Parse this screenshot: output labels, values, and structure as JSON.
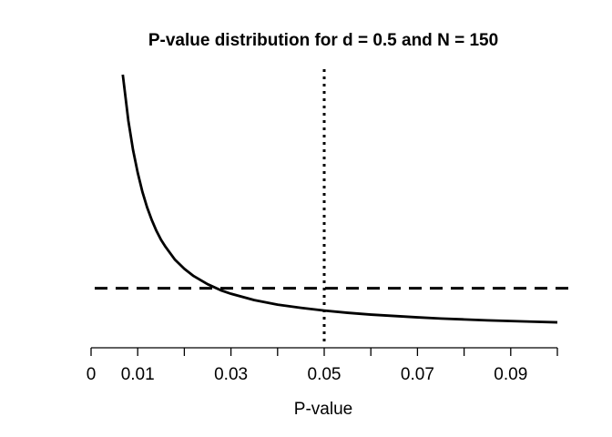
{
  "chart_data": {
    "type": "line",
    "title": "P-value distribution for d = 0.5 and N = 150",
    "xlabel": "P-value",
    "ylabel": "",
    "xlim": [
      0,
      0.1
    ],
    "x_ticks": [
      0,
      0.01,
      0.02,
      0.03,
      0.04,
      0.05,
      0.06,
      0.07,
      0.08,
      0.09,
      0.1
    ],
    "x_tick_labels": [
      {
        "value": 0,
        "label": "0"
      },
      {
        "value": 0.01,
        "label": "0.01"
      },
      {
        "value": 0.03,
        "label": "0.03"
      },
      {
        "value": 0.05,
        "label": "0.05"
      },
      {
        "value": 0.07,
        "label": "0.07"
      },
      {
        "value": 0.09,
        "label": "0.09"
      }
    ],
    "y_axis_shown": false,
    "grid": false,
    "series": [
      {
        "style": "solid",
        "color": "#000000",
        "x": [
          0.0068,
          0.008,
          0.009,
          0.01,
          0.011,
          0.012,
          0.013,
          0.014,
          0.015,
          0.016,
          0.018,
          0.02,
          0.022,
          0.025,
          0.028,
          0.03,
          0.035,
          0.04,
          0.045,
          0.05,
          0.055,
          0.06,
          0.065,
          0.07,
          0.075,
          0.08,
          0.085,
          0.09,
          0.095,
          0.1
        ],
        "y": [
          28.6,
          23.5,
          20.3,
          17.8,
          15.7,
          14.0,
          12.6,
          11.4,
          10.4,
          9.6,
          8.2,
          7.2,
          6.4,
          5.5,
          4.8,
          4.45,
          3.75,
          3.25,
          2.9,
          2.6,
          2.35,
          2.15,
          2.0,
          1.85,
          1.72,
          1.62,
          1.52,
          1.44,
          1.37,
          1.3
        ]
      }
    ],
    "reference_lines": [
      {
        "orientation": "horizontal",
        "value": 5.05,
        "style": "dashed",
        "color": "#000000"
      },
      {
        "orientation": "vertical",
        "value": 0.05,
        "style": "dotted",
        "color": "#000000"
      }
    ],
    "y_range_hidden": [
      0,
      29
    ]
  }
}
